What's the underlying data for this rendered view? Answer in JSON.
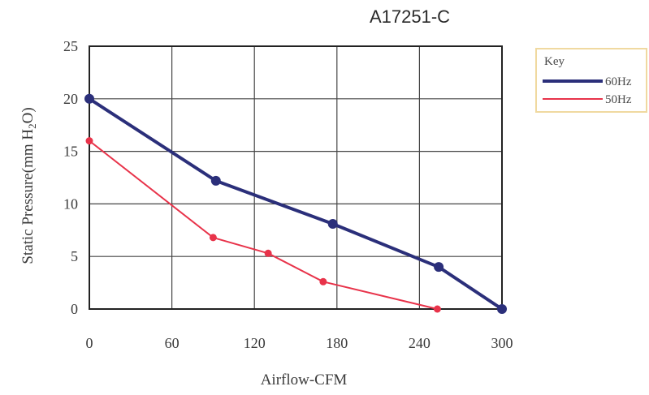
{
  "chart_data": {
    "type": "line",
    "title": "A17251-C",
    "xlabel": "Airflow-CFM",
    "ylabel": "Static Pressure(mm H",
    "ylabel_sub": "2",
    "ylabel_end": "O)",
    "xlim": [
      0,
      300
    ],
    "ylim": [
      0,
      25
    ],
    "x_ticks": [
      "0",
      "60",
      "120",
      "180",
      "240",
      "300"
    ],
    "y_ticks": [
      "0",
      "5",
      "10",
      "15",
      "20",
      "25"
    ],
    "grid": true,
    "legend": {
      "title": "Key",
      "position": "right"
    },
    "series": [
      {
        "name": "60Hz",
        "color": "#2b2f7a",
        "x": [
          0,
          92,
          177,
          254,
          300
        ],
        "y": [
          20,
          12.2,
          8.1,
          4.0,
          0
        ],
        "markers": [
          0,
          92,
          177,
          254,
          300
        ]
      },
      {
        "name": "50Hz",
        "color": "#e8334a",
        "x": [
          0,
          90,
          130,
          170,
          253
        ],
        "y": [
          16,
          6.8,
          5.3,
          2.6,
          0
        ]
      }
    ]
  }
}
